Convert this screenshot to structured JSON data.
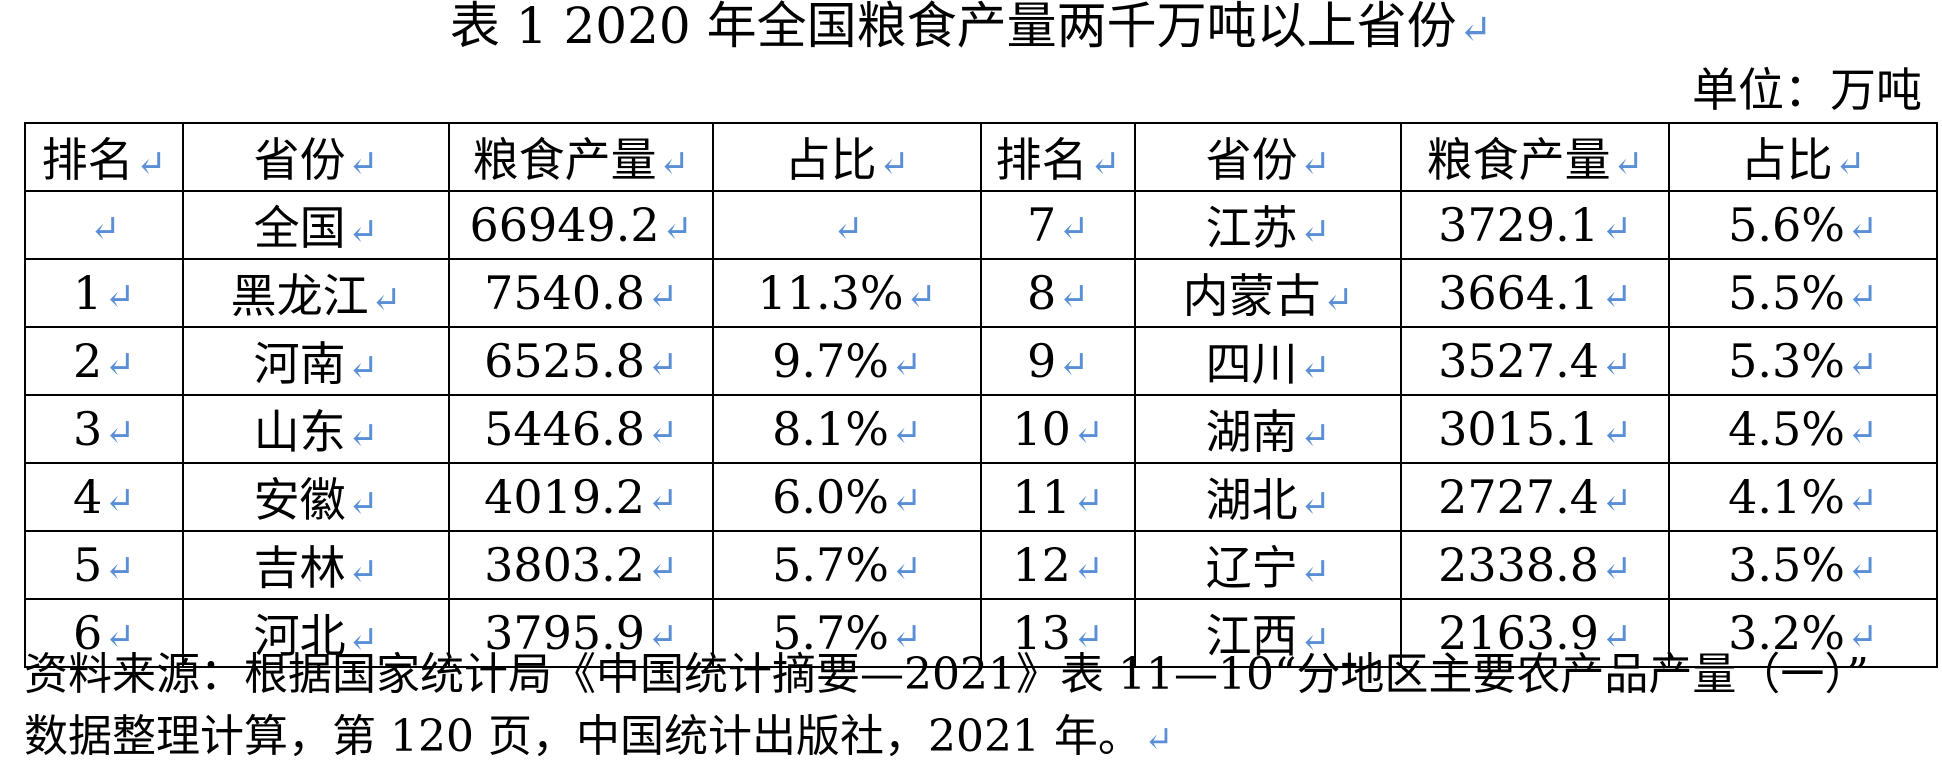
{
  "title": "表 1    2020 年全国粮食产量两千万吨以上省份",
  "unit": "单位：万吨",
  "table": {
    "headers": [
      "排名",
      "省份",
      "粮食产量",
      "占比",
      "排名",
      "省份",
      "粮食产量",
      "占比"
    ],
    "rows": [
      [
        "",
        "全国",
        "66949.2",
        "",
        "7",
        "江苏",
        "3729.1",
        "5.6%"
      ],
      [
        "1",
        "黑龙江",
        "7540.8",
        "11.3%",
        "8",
        "内蒙古",
        "3664.1",
        "5.5%"
      ],
      [
        "2",
        "河南",
        "6525.8",
        "9.7%",
        "9",
        "四川",
        "3527.4",
        "5.3%"
      ],
      [
        "3",
        "山东",
        "5446.8",
        "8.1%",
        "10",
        "湖南",
        "3015.1",
        "4.5%"
      ],
      [
        "4",
        "安徽",
        "4019.2",
        "6.0%",
        "11",
        "湖北",
        "2727.4",
        "4.1%"
      ],
      [
        "5",
        "吉林",
        "3803.2",
        "5.7%",
        "12",
        "辽宁",
        "2338.8",
        "3.5%"
      ],
      [
        "6",
        "河北",
        "3795.9",
        "5.7%",
        "13",
        "江西",
        "2163.9",
        "3.2%"
      ]
    ]
  },
  "source": {
    "line1": "资料来源：根据国家统计局《中国统计摘要—2021》表 11—10“分地区主要农产品产量（一）”",
    "line2": "数据整理计算，第 120 页，中国统计出版社，2021 年。"
  },
  "marks": {
    "paragraph_mark": "↵"
  }
}
